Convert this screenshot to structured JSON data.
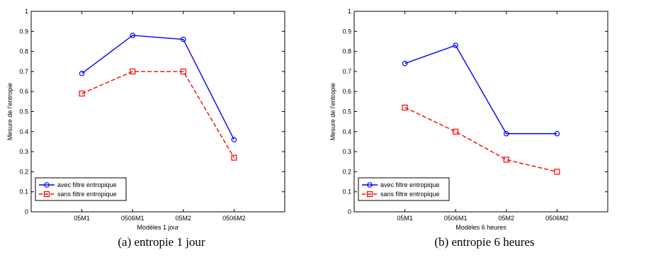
{
  "chart_data": [
    {
      "type": "line",
      "caption": "(a) entropie 1 jour",
      "categories": [
        "05M1",
        "0506M1",
        "05M2",
        "0506M2"
      ],
      "xlabel": "Modèles 1 jour",
      "ylabel": "Mesure de l'entropie",
      "ylim": [
        0,
        1
      ],
      "yticks": [
        "0",
        "0.1",
        "0.2",
        "0.3",
        "0.4",
        "0.5",
        "0.6",
        "0.7",
        "0.8",
        "0.9",
        "1"
      ],
      "grid": false,
      "legend_position": "bottom-left",
      "series": [
        {
          "name": "avec filtre entropique",
          "values": [
            0.69,
            0.88,
            0.86,
            0.36
          ],
          "color": "#0000ff",
          "marker": "circle",
          "linestyle": "solid"
        },
        {
          "name": "sans filtre entropique",
          "values": [
            0.59,
            0.7,
            0.7,
            0.27
          ],
          "color": "#ff0000",
          "marker": "square",
          "linestyle": "dashed"
        }
      ]
    },
    {
      "type": "line",
      "caption": "(b) entropie 6 heures",
      "categories": [
        "05M1",
        "0506M1",
        "05M2",
        "0506M2"
      ],
      "xlabel": "Modèles 6 heures",
      "ylabel": "Mesure de l'entropie",
      "ylim": [
        0,
        1
      ],
      "yticks": [
        "0",
        "0.1",
        "0.2",
        "0.3",
        "0.4",
        "0.5",
        "0.6",
        "0.7",
        "0.8",
        "0.9",
        "1"
      ],
      "grid": false,
      "legend_position": "bottom-left",
      "series": [
        {
          "name": "avec filtre entropique",
          "values": [
            0.74,
            0.83,
            0.39,
            0.39
          ],
          "color": "#0000ff",
          "marker": "circle",
          "linestyle": "solid"
        },
        {
          "name": "sans filtre entropique",
          "values": [
            0.52,
            0.4,
            0.26,
            0.2
          ],
          "color": "#ff0000",
          "marker": "square",
          "linestyle": "dashed"
        }
      ]
    }
  ]
}
